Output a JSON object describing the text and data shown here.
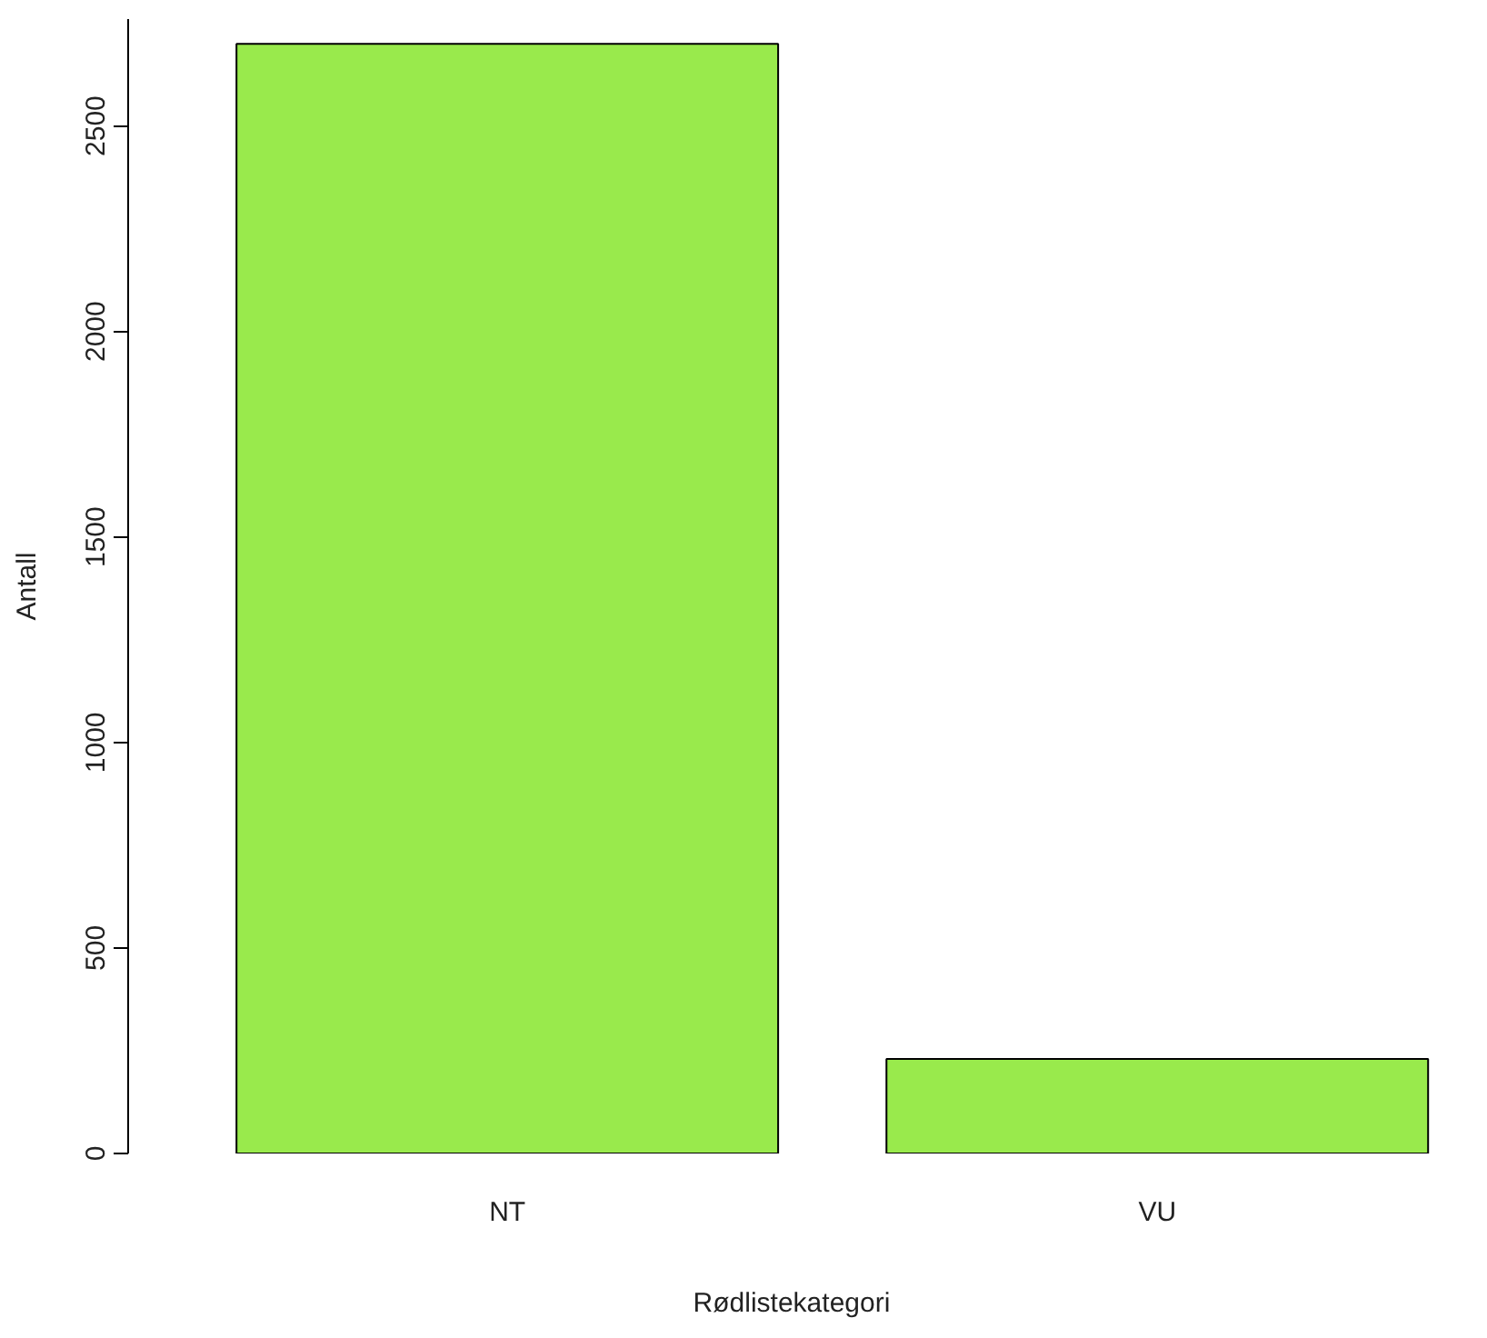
{
  "chart_data": {
    "type": "bar",
    "xlabel": "Rødlistekategori",
    "ylabel": "Antall",
    "categories": [
      "NT",
      "VU"
    ],
    "values": [
      2700,
      230
    ],
    "color": "#99ea4c",
    "ylim": [
      0,
      2760
    ],
    "yticks": [
      0,
      500,
      1000,
      1500,
      2000,
      2500
    ],
    "grid": false
  }
}
